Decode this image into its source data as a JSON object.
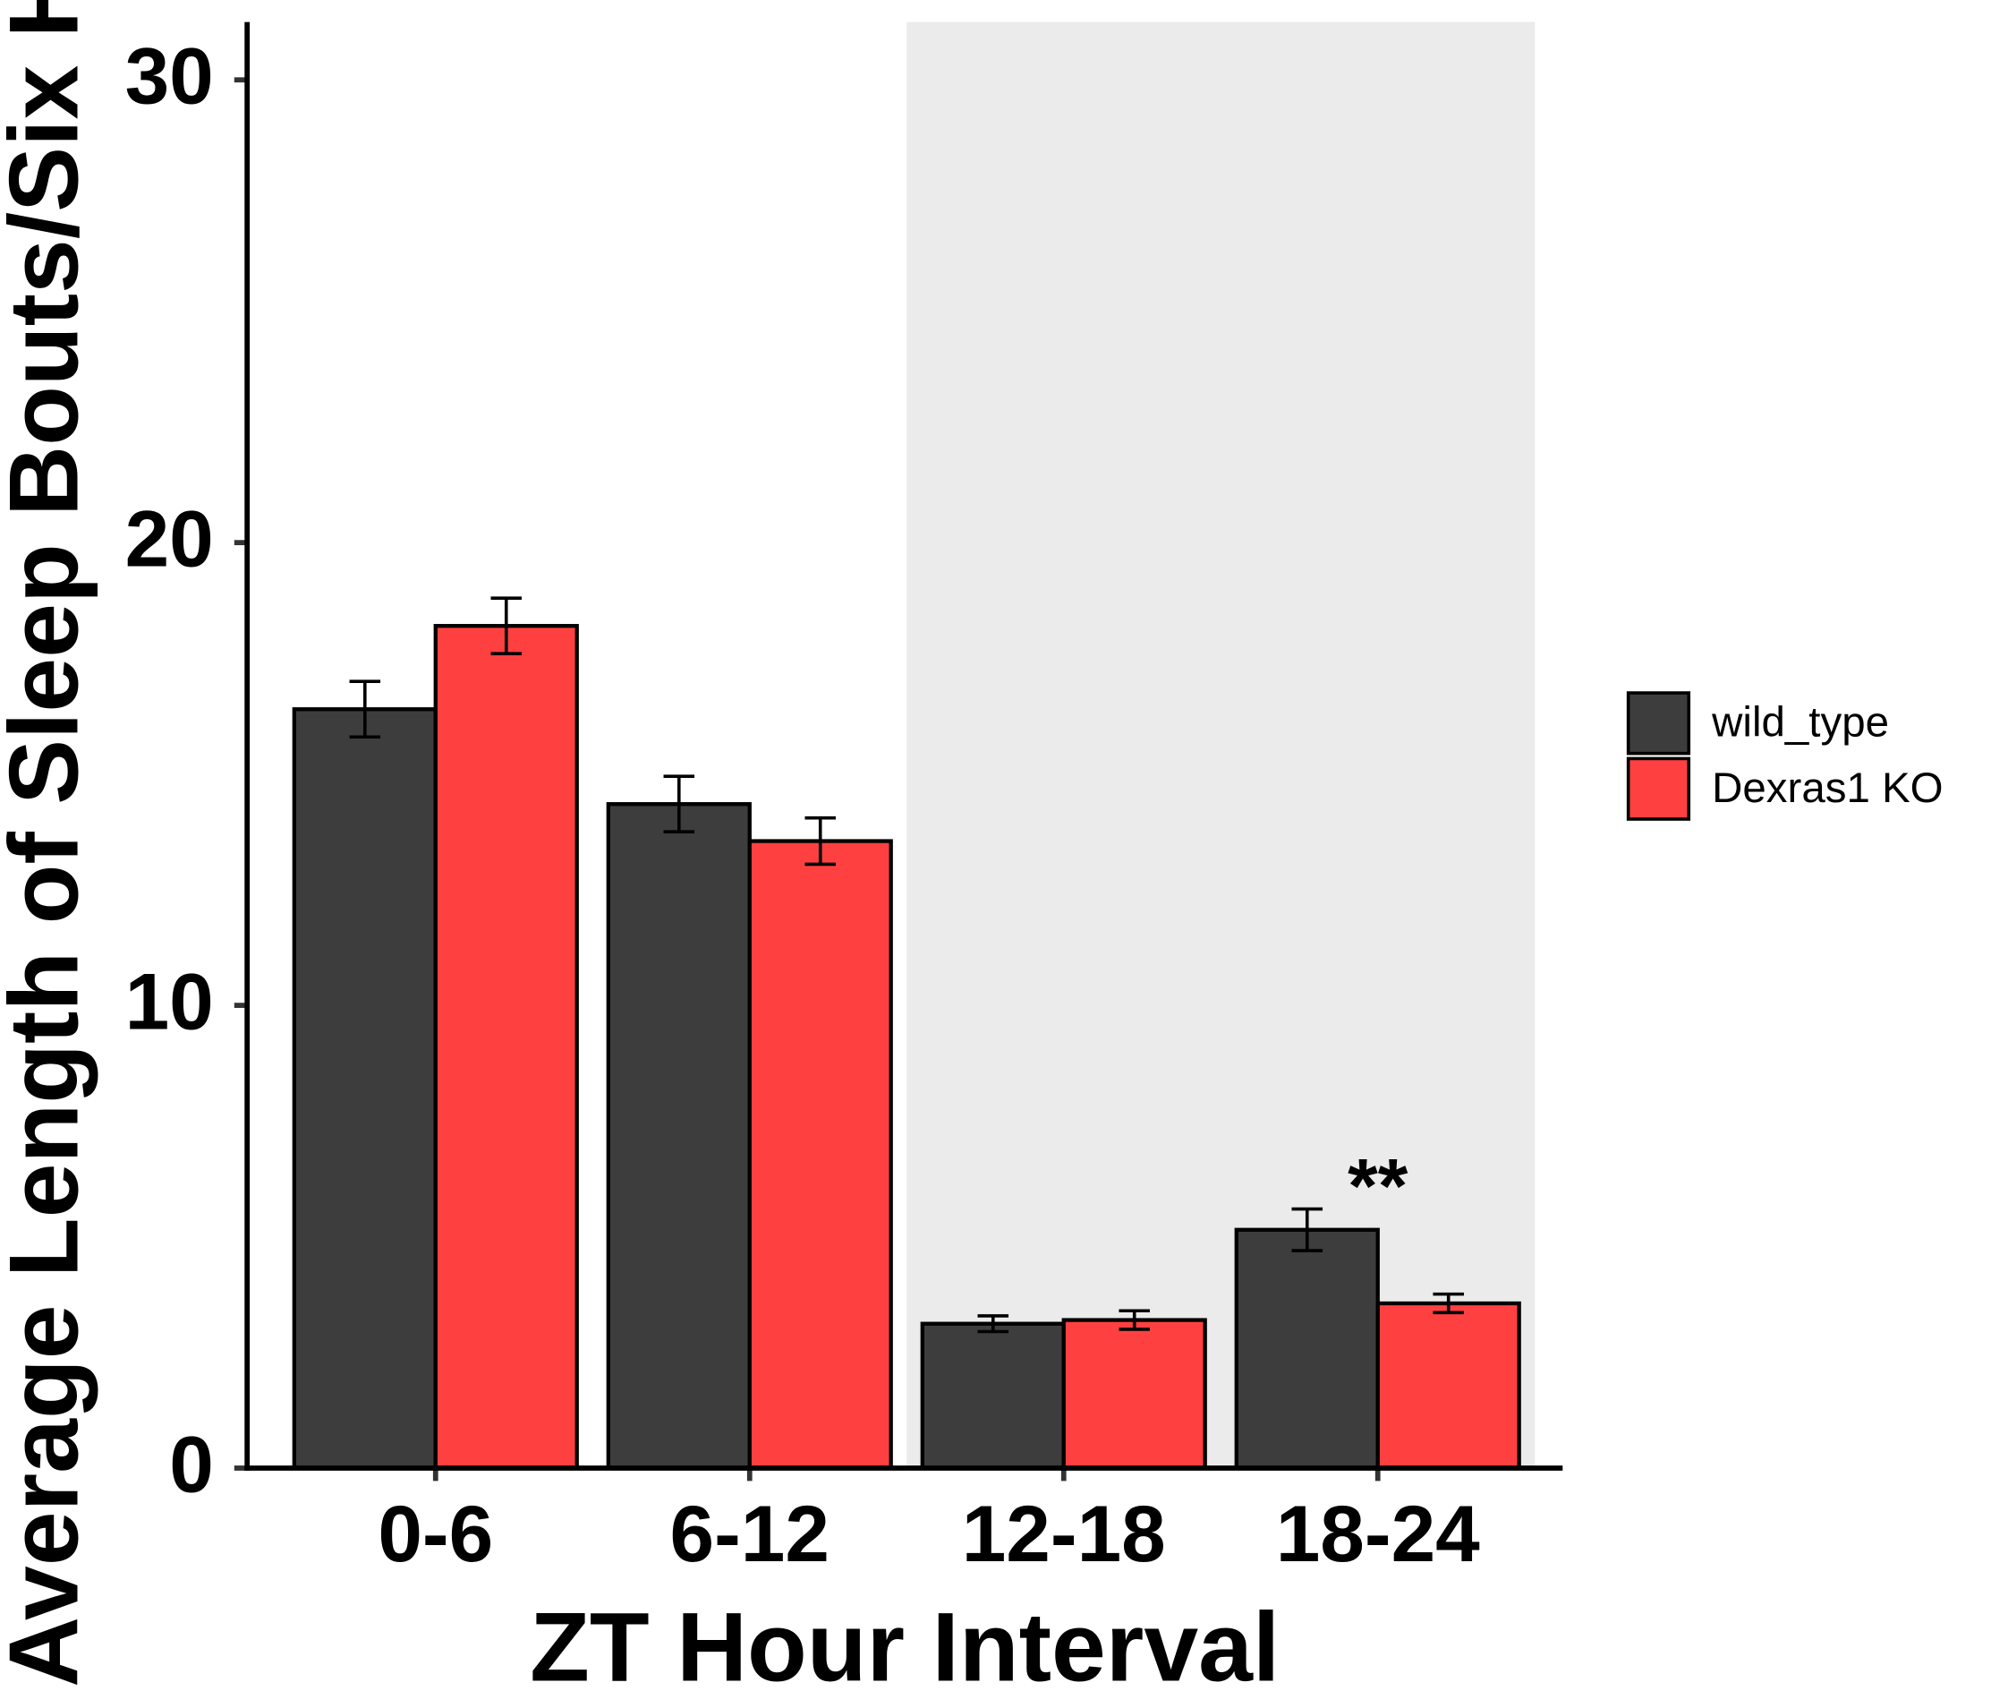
{
  "chart_data": {
    "type": "bar",
    "y_label": "Average Length of Sleep Bouts/Six Hours",
    "x_label": "ZT Hour Interval",
    "categories": [
      "0-6",
      "6-12",
      "12-18",
      "18-24"
    ],
    "series": [
      {
        "name": "wild_type",
        "color": "#3d3d3d",
        "values": [
          16.4,
          14.35,
          3.12,
          5.15
        ],
        "errors": [
          0.6,
          0.6,
          0.17,
          0.45
        ]
      },
      {
        "name": "Dexras1 KO",
        "color": "#ff4040",
        "values": [
          18.2,
          13.55,
          3.2,
          3.56
        ],
        "errors": [
          0.6,
          0.5,
          0.2,
          0.2
        ]
      }
    ],
    "ylim": [
      0,
      31.25
    ],
    "yticks": [
      0,
      10,
      20,
      30
    ],
    "shade_categories": [
      2,
      3
    ],
    "shade_color": "#ebebeb",
    "annotations": [
      {
        "text": "**",
        "category": 3,
        "y": 6.3
      }
    ],
    "legend": "right"
  }
}
